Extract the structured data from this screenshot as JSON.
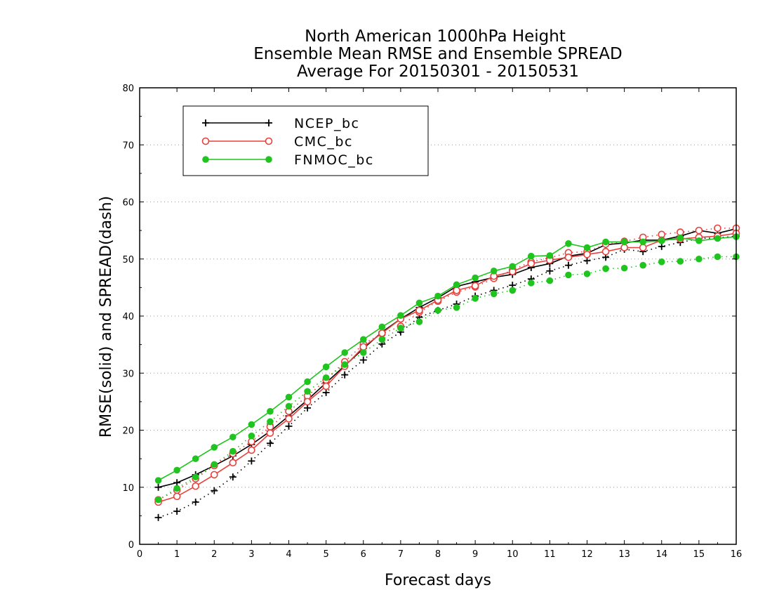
{
  "chart_data": {
    "type": "line",
    "title": [
      "North American 1000hPa Height",
      "Ensemble Mean RMSE and Ensemble SPREAD",
      "Average For 20150301 - 20150531"
    ],
    "xlabel": "Forecast days",
    "ylabel": "RMSE(solid) and SPREAD(dash)",
    "xlim": [
      0,
      16
    ],
    "ylim": [
      0,
      80
    ],
    "xticks": [
      0,
      1,
      2,
      3,
      4,
      5,
      6,
      7,
      8,
      9,
      10,
      11,
      12,
      13,
      14,
      15,
      16
    ],
    "yticks": [
      0,
      10,
      20,
      30,
      40,
      50,
      60,
      70,
      80
    ],
    "grid": true,
    "legend_position": "top-left",
    "x": [
      0.5,
      1,
      1.5,
      2,
      2.5,
      3,
      3.5,
      4,
      4.5,
      5,
      5.5,
      6,
      6.5,
      7,
      7.5,
      8,
      8.5,
      9,
      9.5,
      10,
      10.5,
      11,
      11.5,
      12,
      12.5,
      13,
      13.5,
      14,
      14.5,
      15,
      15.5,
      16
    ],
    "series": [
      {
        "name": "NCEP_bc",
        "color": "#000000",
        "marker": "plus",
        "rmse": [
          10,
          10.8,
          12.2,
          13.8,
          15.5,
          17.5,
          19.8,
          22.5,
          25.3,
          28.3,
          31.3,
          34.3,
          37.2,
          39.5,
          41.5,
          43.2,
          45.2,
          46,
          46.8,
          47.3,
          48.5,
          49.2,
          50.5,
          51,
          52.5,
          52.8,
          53.3,
          53.3,
          54,
          55,
          54.5,
          55.3
        ],
        "spread": [
          4.7,
          5.8,
          7.4,
          9.4,
          11.8,
          14.6,
          17.7,
          20.7,
          23.9,
          26.6,
          29.7,
          32.3,
          35.1,
          37.2,
          39.8,
          41,
          42.1,
          43.5,
          44.5,
          45.4,
          46.5,
          47.9,
          48.9,
          49.7,
          50.3,
          51.7,
          51.3,
          52.2,
          52.9,
          53.6,
          53.7,
          54
        ]
      },
      {
        "name": "CMC_bc",
        "color": "#e8403c",
        "marker": "open-circle",
        "rmse": [
          7.4,
          8.4,
          10.2,
          12.2,
          14.3,
          16.5,
          19.5,
          22,
          25,
          27.7,
          31.2,
          34.6,
          37,
          39.5,
          41,
          42.8,
          44.5,
          45.3,
          47,
          47.8,
          49.2,
          49.8,
          50.3,
          50.8,
          51.3,
          52,
          52,
          53.3,
          53.5,
          53.8,
          54,
          54.5
        ],
        "spread": [
          7.8,
          9.5,
          11.5,
          13.8,
          15.9,
          18,
          20.6,
          23.3,
          26,
          28.8,
          32,
          35.1,
          36.9,
          38.2,
          40.7,
          42.6,
          44.2,
          45.1,
          46.6,
          48.1,
          49.5,
          50.2,
          51.1,
          51.3,
          52.6,
          53.1,
          53.8,
          54.3,
          54.7,
          55,
          55.4,
          55.4
        ]
      },
      {
        "name": "FNMOC_bc",
        "color": "#1fc41f",
        "marker": "filled-circle",
        "rmse": [
          11.2,
          13,
          15,
          17,
          18.8,
          21,
          23.3,
          25.8,
          28.5,
          31.1,
          33.6,
          35.9,
          38.1,
          40.1,
          42.3,
          43.5,
          45.5,
          46.7,
          47.9,
          48.7,
          50.5,
          50.6,
          52.7,
          52,
          53,
          53,
          53,
          53.2,
          53.7,
          53.2,
          53.6,
          53.9
        ],
        "spread": [
          7.8,
          9.8,
          11.8,
          14,
          16.3,
          19,
          21.5,
          24.2,
          26.8,
          29.2,
          31.5,
          33.6,
          35.9,
          37.9,
          39,
          41,
          41.5,
          43.1,
          43.9,
          44.5,
          45.8,
          46.2,
          47.2,
          47.4,
          48.3,
          48.4,
          48.9,
          49.5,
          49.6,
          50,
          50.4,
          50.4
        ]
      }
    ]
  }
}
